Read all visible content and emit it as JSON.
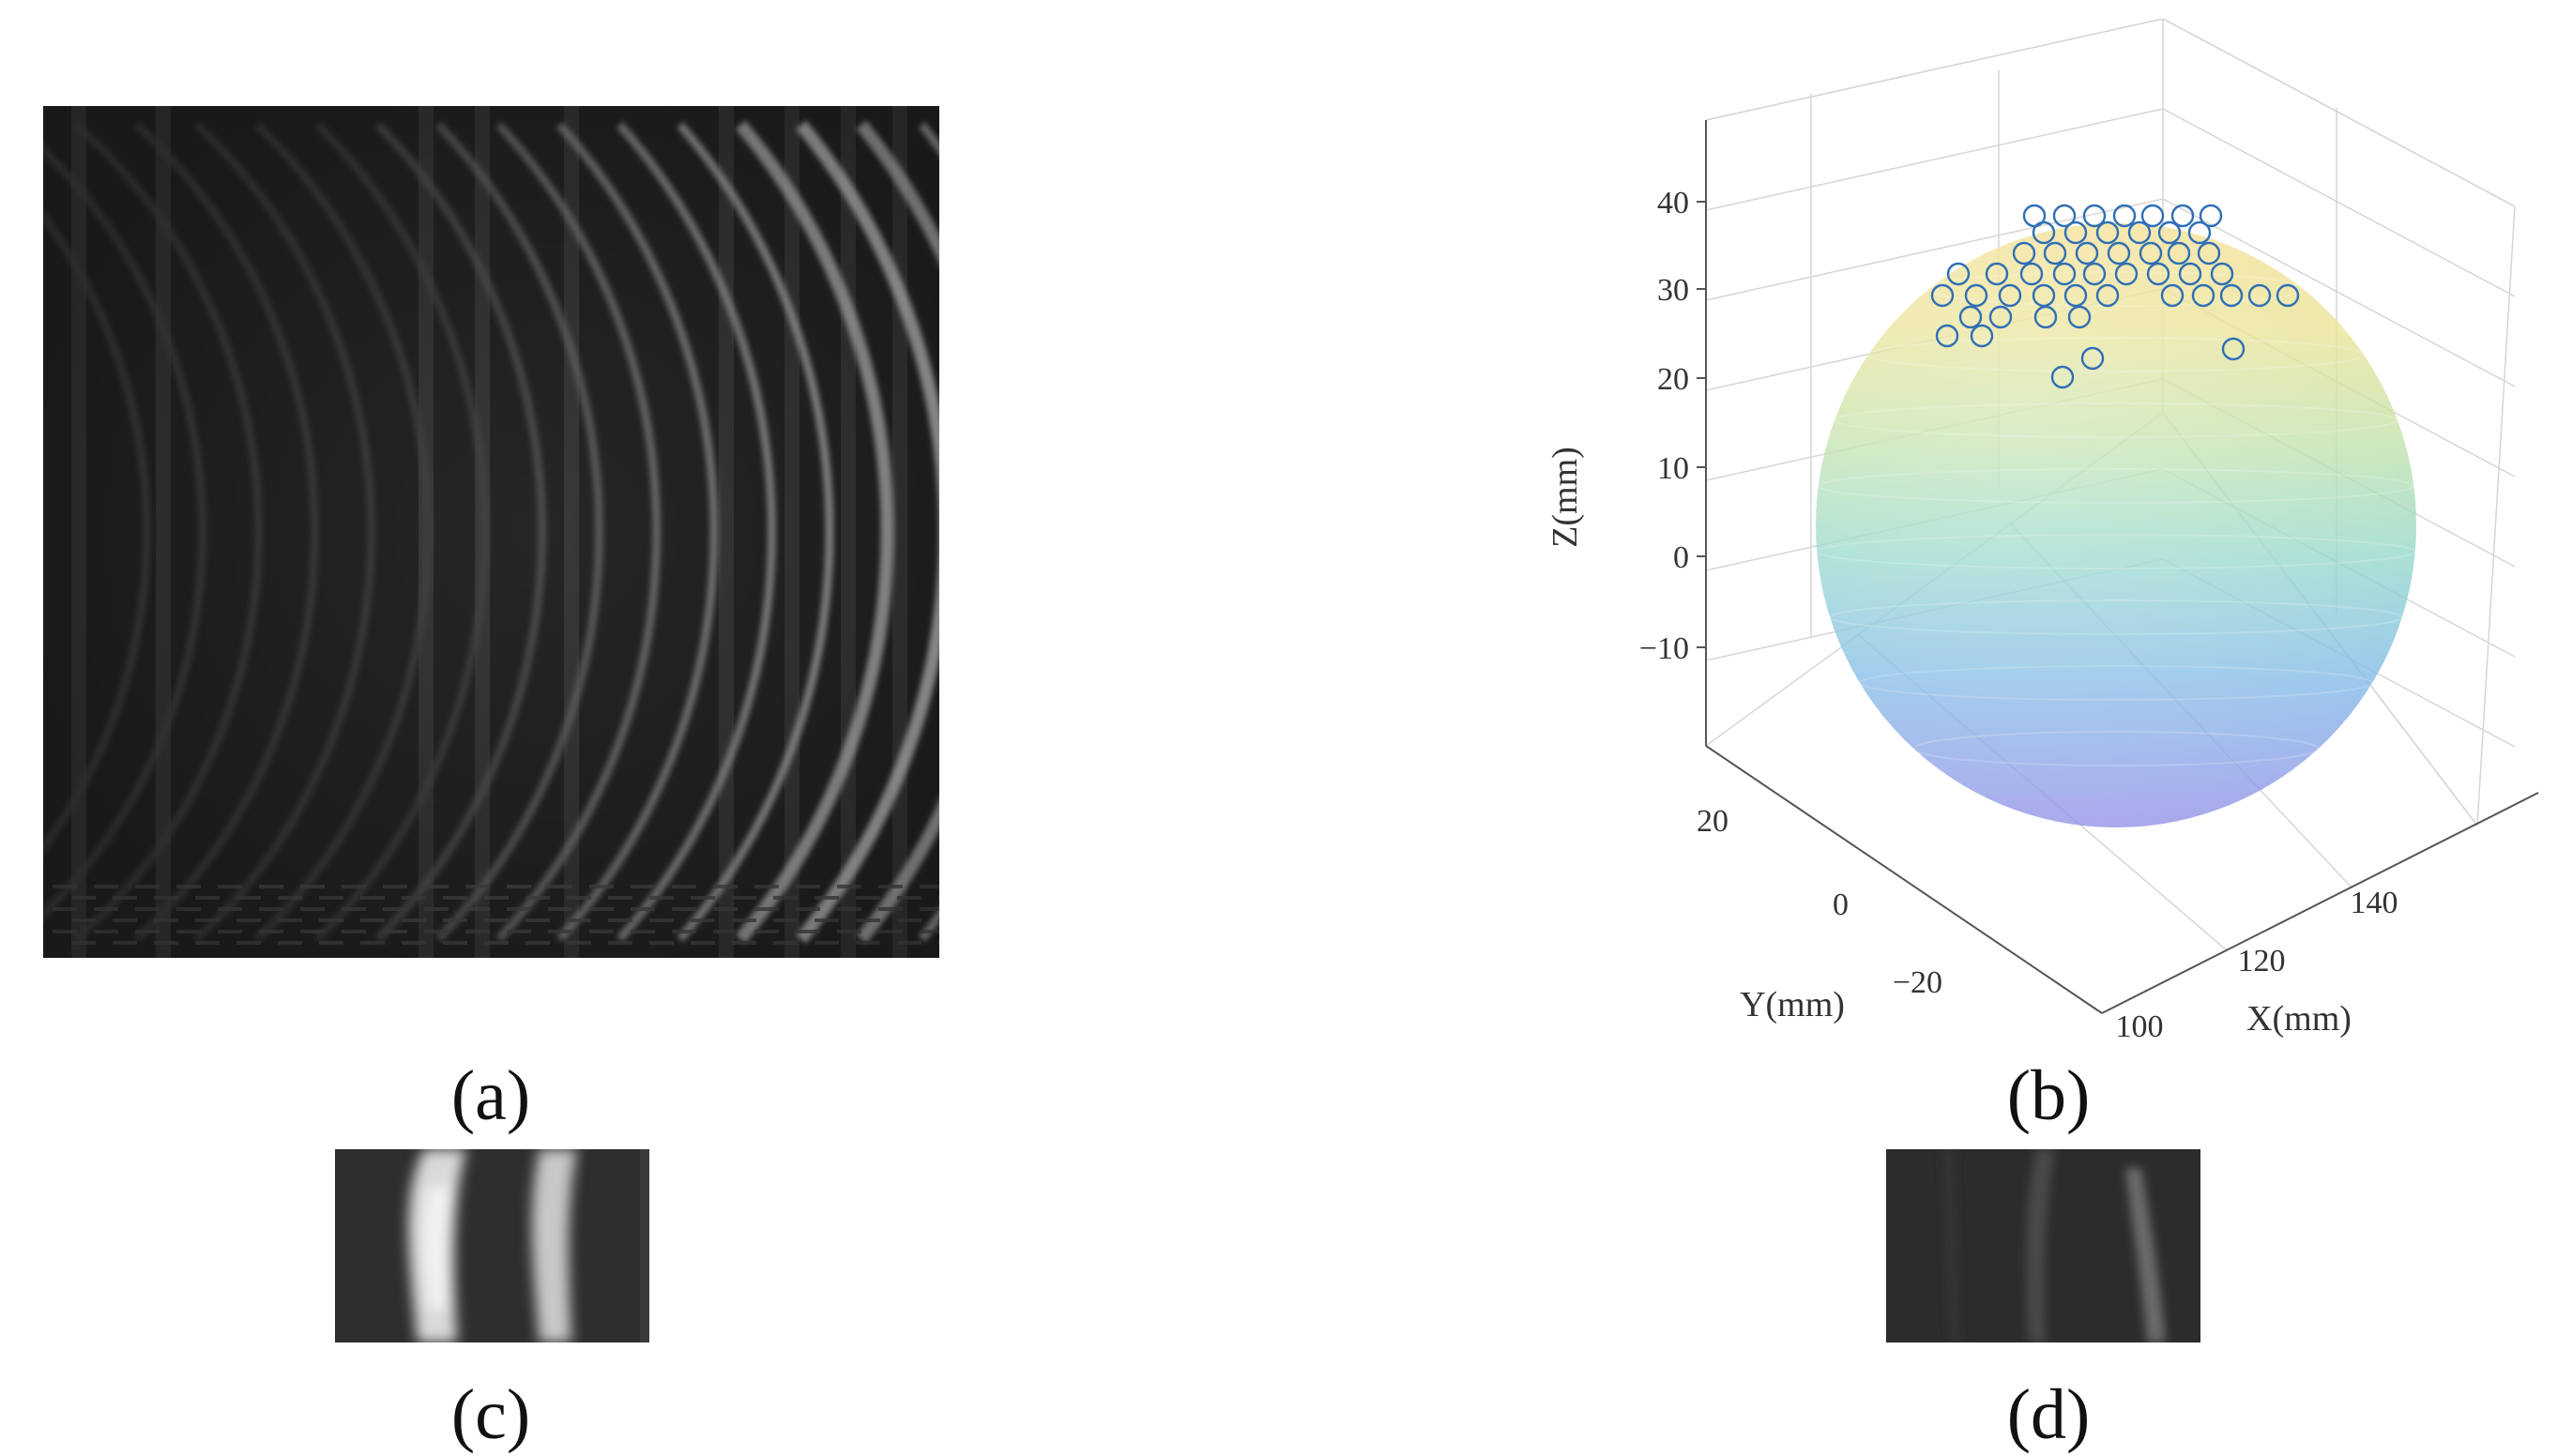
{
  "captions": {
    "a": "(a)",
    "b": "(b)",
    "c": "(c)",
    "d": "(d)"
  },
  "chart_data": {
    "type": "scatter3d",
    "xlabel": "X(mm)",
    "ylabel": "Y(mm)",
    "zlabel": "Z(mm)",
    "x_ticks": [
      100,
      120,
      140
    ],
    "y_ticks": [
      20,
      0,
      -20
    ],
    "z_ticks": [
      40,
      30,
      20,
      10,
      0,
      -10
    ],
    "x_tick_labels": [
      "100",
      "120",
      "140"
    ],
    "y_tick_labels": [
      "20",
      "0",
      "−20"
    ],
    "z_tick_labels": [
      "40",
      "30",
      "20",
      "10",
      "0",
      "−10"
    ],
    "grid": true,
    "surface": {
      "shape": "sphere",
      "colormap": "parula-translucent"
    },
    "marker": {
      "shape": "open-circle",
      "color": "#2f6fb5"
    },
    "point_count": 56
  }
}
